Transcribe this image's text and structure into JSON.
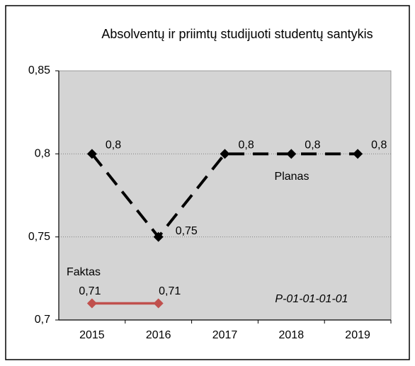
{
  "chart_data": {
    "type": "line",
    "title": "Absolventų ir priimtų studijuoti studentų santykis",
    "categories": [
      "2015",
      "2016",
      "2017",
      "2018",
      "2019"
    ],
    "series": [
      {
        "name": "Planas",
        "color": "#000000",
        "dashed": true,
        "values": [
          0.8,
          0.75,
          0.8,
          0.8,
          0.8
        ],
        "value_labels": [
          "0,8",
          "0,75",
          "0,8",
          "0,8",
          "0,8"
        ]
      },
      {
        "name": "Faktas",
        "color": "#c0504d",
        "dashed": false,
        "values": [
          0.71,
          0.71,
          null,
          null,
          null
        ],
        "value_labels": [
          "0,71",
          "0,71",
          null,
          null,
          null
        ]
      }
    ],
    "annotation": "P-01-01-01-01",
    "ylim": [
      0.7,
      0.85
    ],
    "yticks": [
      {
        "value": 0.7,
        "label": "0,7"
      },
      {
        "value": 0.75,
        "label": "0,75"
      },
      {
        "value": 0.8,
        "label": "0,8"
      },
      {
        "value": 0.85,
        "label": "0,85"
      }
    ],
    "grid": true,
    "plot_background": "#d4d4d4"
  }
}
